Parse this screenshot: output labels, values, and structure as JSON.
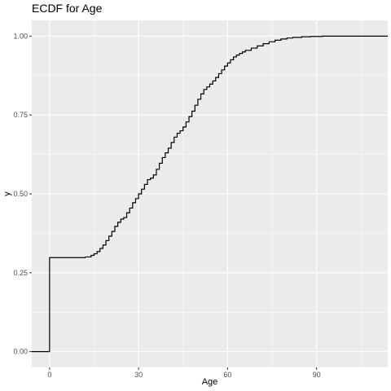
{
  "chart_data": {
    "type": "line",
    "step": true,
    "title": "ECDF for Age",
    "xlabel": "Age",
    "ylabel": "y",
    "xlim": [
      -6,
      114
    ],
    "ylim": [
      -0.05,
      1.05
    ],
    "x_ticks": [
      0,
      30,
      60,
      90
    ],
    "x_tick_labels": [
      "0",
      "30",
      "60",
      "90"
    ],
    "y_ticks": [
      0,
      0.25,
      0.5,
      0.75,
      1.0
    ],
    "y_tick_labels": [
      "0.00",
      "0.25",
      "0.50",
      "0.75",
      "1.00"
    ],
    "grid": true,
    "background": "#ebebeb",
    "grid_color": "#ffffff",
    "line_color": "#000000",
    "series": [
      {
        "x": [
          -6,
          0,
          0,
          10,
          12,
          14,
          15,
          16,
          17,
          18,
          19,
          20,
          21,
          22,
          23,
          24,
          25,
          26,
          27,
          28,
          29,
          30,
          31,
          32,
          33,
          34,
          35,
          36,
          37,
          38,
          39,
          40,
          41,
          42,
          43,
          44,
          45,
          46,
          47,
          48,
          49,
          50,
          51,
          52,
          53,
          54,
          55,
          56,
          57,
          58,
          59,
          60,
          61,
          62,
          63,
          64,
          65,
          66,
          68,
          70,
          72,
          74,
          76,
          78,
          80,
          82,
          85,
          88,
          92,
          114
        ],
        "y": [
          0.0,
          0.0,
          0.298,
          0.298,
          0.3,
          0.305,
          0.31,
          0.317,
          0.327,
          0.338,
          0.352,
          0.366,
          0.381,
          0.397,
          0.41,
          0.42,
          0.425,
          0.44,
          0.455,
          0.472,
          0.485,
          0.5,
          0.515,
          0.53,
          0.545,
          0.55,
          0.56,
          0.578,
          0.597,
          0.615,
          0.63,
          0.645,
          0.663,
          0.68,
          0.692,
          0.7,
          0.712,
          0.728,
          0.745,
          0.762,
          0.781,
          0.8,
          0.817,
          0.831,
          0.839,
          0.848,
          0.858,
          0.869,
          0.881,
          0.893,
          0.905,
          0.915,
          0.925,
          0.934,
          0.94,
          0.945,
          0.95,
          0.955,
          0.962,
          0.969,
          0.976,
          0.982,
          0.987,
          0.991,
          0.994,
          0.996,
          0.998,
          0.999,
          1.0,
          1.0
        ]
      }
    ]
  }
}
